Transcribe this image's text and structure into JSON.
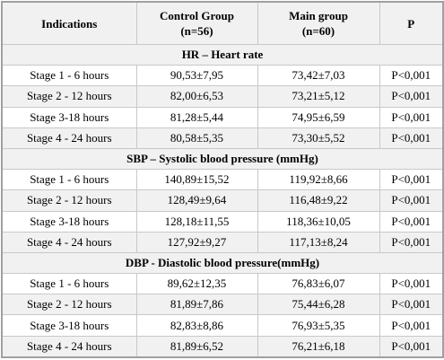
{
  "table": {
    "headers": [
      {
        "line1": "Indications",
        "line2": ""
      },
      {
        "line1": "Control Group",
        "line2": "(n=56)"
      },
      {
        "line1": "Main group",
        "line2": "(n=60)"
      },
      {
        "line1": "P",
        "line2": ""
      }
    ],
    "sections": [
      {
        "title": "HR – Heart rate",
        "rows": [
          {
            "stage": "Stage 1 - 6 hours",
            "control": "90,53±7,95",
            "main": "73,42±7,03",
            "p": "P<0,001"
          },
          {
            "stage": "Stage 2 - 12 hours",
            "control": "82,00±6,53",
            "main": "73,21±5,12",
            "p": "P<0,001"
          },
          {
            "stage": "Stage 3-18 hours",
            "control": "81,28±5,44",
            "main": "74,95±6,59",
            "p": "P<0,001"
          },
          {
            "stage": "Stage 4 - 24 hours",
            "control": "80,58±5,35",
            "main": "73,30±5,52",
            "p": "P<0,001"
          }
        ]
      },
      {
        "title": "SBP – Systolic blood pressure (mmHg)",
        "rows": [
          {
            "stage": "Stage 1 - 6 hours",
            "control": "140,89±15,52",
            "main": "119,92±8,66",
            "p": "P<0,001"
          },
          {
            "stage": "Stage 2 - 12 hours",
            "control": "128,49±9,64",
            "main": "116,48±9,22",
            "p": "P<0,001"
          },
          {
            "stage": "Stage 3-18 hours",
            "control": "128,18±11,55",
            "main": "118,36±10,05",
            "p": "P<0,001"
          },
          {
            "stage": "Stage 4 - 24 hours",
            "control": "127,92±9,27",
            "main": "117,13±8,24",
            "p": "P<0,001"
          }
        ]
      },
      {
        "title": "DBP - Diastolic blood pressure(mmHg)",
        "rows": [
          {
            "stage": "Stage 1 - 6 hours",
            "control": "89,62±12,35",
            "main": "76,83±6,07",
            "p": "P<0,001"
          },
          {
            "stage": "Stage 2 - 12 hours",
            "control": "81,89±7,86",
            "main": "75,44±6,28",
            "p": "P<0,001"
          },
          {
            "stage": "Stage 3-18 hours",
            "control": "82,83±8,86",
            "main": "76,93±5,35",
            "p": "P<0,001"
          },
          {
            "stage": "Stage 4 - 24 hours",
            "control": "81,89±6,52",
            "main": "76,21±6,18",
            "p": "P<0,001"
          }
        ]
      }
    ]
  }
}
